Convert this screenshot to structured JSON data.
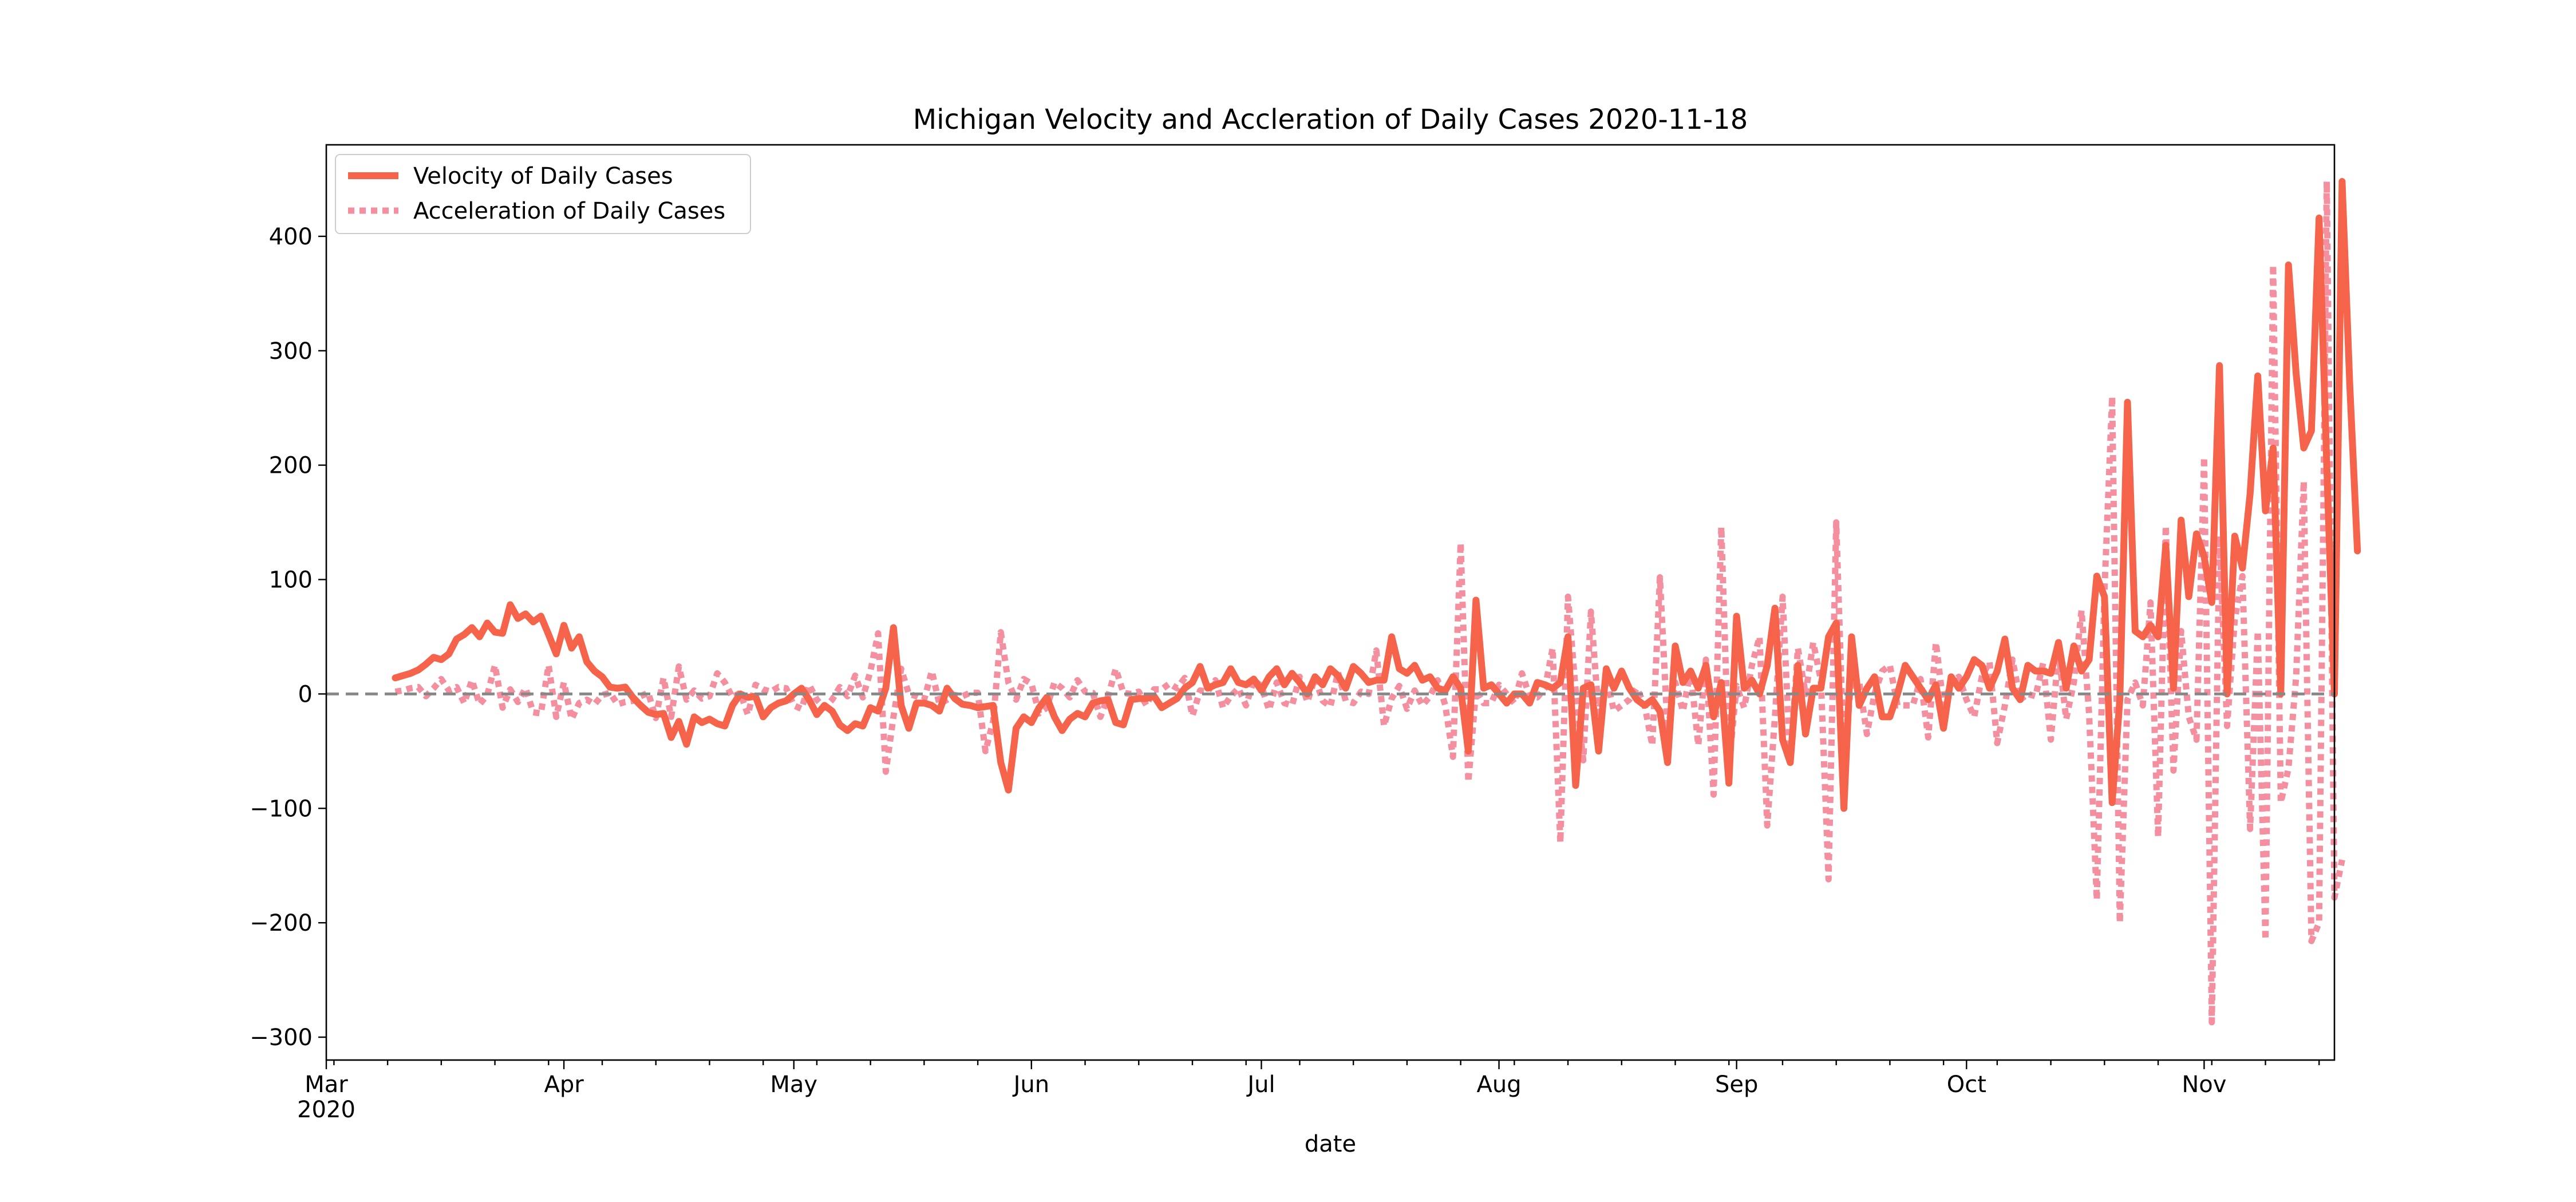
{
  "chart_data": {
    "type": "line",
    "title": "Michigan Velocity and Accleration of Daily Cases 2020-11-18",
    "xlabel": "date",
    "ylabel": "",
    "x_start": "2020-03-10",
    "x_end": "2020-11-18",
    "xlim": [
      "2020-03-01",
      "2020-11-18"
    ],
    "ylim": [
      -320,
      480
    ],
    "y_ticks": [
      -300,
      -200,
      -100,
      0,
      100,
      200,
      300,
      400
    ],
    "y_tick_labels": [
      "−300",
      "−200",
      "−100",
      "0",
      "100",
      "200",
      "300",
      "400"
    ],
    "x_ticks": [
      {
        "date": "2020-03-01",
        "label": "Mar",
        "sublabel": "2020"
      },
      {
        "date": "2020-04-01",
        "label": "Apr",
        "sublabel": ""
      },
      {
        "date": "2020-05-01",
        "label": "May",
        "sublabel": ""
      },
      {
        "date": "2020-06-01",
        "label": "Jun",
        "sublabel": ""
      },
      {
        "date": "2020-07-01",
        "label": "Jul",
        "sublabel": ""
      },
      {
        "date": "2020-08-01",
        "label": "Aug",
        "sublabel": ""
      },
      {
        "date": "2020-09-01",
        "label": "Sep",
        "sublabel": ""
      },
      {
        "date": "2020-10-01",
        "label": "Oct",
        "sublabel": ""
      },
      {
        "date": "2020-11-01",
        "label": "Nov",
        "sublabel": ""
      }
    ],
    "reference_line": {
      "y": 0,
      "color": "#888888",
      "style": "dashed"
    },
    "grid": false,
    "legend_position": "upper-left",
    "series": [
      {
        "name": "Velocity of Daily Cases",
        "color": "#f4634a",
        "style": "solid",
        "values": [
          14,
          16,
          18,
          21,
          26,
          32,
          30,
          35,
          48,
          52,
          58,
          50,
          62,
          54,
          53,
          78,
          66,
          70,
          63,
          68,
          52,
          35,
          60,
          40,
          50,
          28,
          20,
          15,
          6,
          5,
          6,
          -3,
          -10,
          -16,
          -18,
          -17,
          -38,
          -24,
          -44,
          -20,
          -25,
          -22,
          -26,
          -28,
          -10,
          0,
          -3,
          -2,
          -20,
          -12,
          -8,
          -6,
          0,
          5,
          -5,
          -18,
          -10,
          -15,
          -27,
          -32,
          -26,
          -28,
          -12,
          -15,
          5,
          58,
          -10,
          -30,
          -8,
          -8,
          -10,
          -15,
          5,
          -4,
          -9,
          -10,
          -12,
          -11,
          -10,
          -60,
          -84,
          -30,
          -20,
          -25,
          -12,
          -3,
          -20,
          -32,
          -22,
          -17,
          -20,
          -8,
          -6,
          -5,
          -25,
          -27,
          -5,
          -4,
          -4,
          -2,
          -12,
          -8,
          -4,
          5,
          10,
          24,
          5,
          8,
          10,
          22,
          10,
          8,
          13,
          3,
          15,
          22,
          8,
          18,
          10,
          0,
          15,
          8,
          22,
          16,
          5,
          24,
          18,
          10,
          12,
          12,
          50,
          22,
          18,
          25,
          12,
          15,
          5,
          3,
          15,
          5,
          -50,
          82,
          5,
          8,
          0,
          -8,
          0,
          0,
          -8,
          10,
          8,
          5,
          10,
          50,
          -80,
          5,
          8,
          -50,
          22,
          5,
          20,
          5,
          -5,
          -10,
          -5,
          -15,
          -60,
          42,
          10,
          20,
          5,
          25,
          -20,
          10,
          -78,
          68,
          5,
          12,
          0,
          25,
          75,
          -40,
          -60,
          25,
          -35,
          5,
          5,
          50,
          62,
          -100,
          50,
          -10,
          5,
          15,
          -20,
          -20,
          0,
          25,
          15,
          5,
          -5,
          8,
          -30,
          15,
          5,
          15,
          30,
          25,
          5,
          20,
          48,
          5,
          -5,
          25,
          20,
          20,
          18,
          45,
          5,
          42,
          20,
          30,
          103,
          85,
          -95,
          -5,
          255,
          55,
          50,
          60,
          50,
          130,
          5,
          152,
          85,
          140,
          120,
          80,
          287,
          0,
          138,
          110,
          175,
          278,
          160,
          215,
          0,
          375,
          280,
          215,
          230,
          416,
          200,
          0,
          448,
          270,
          125
        ]
      },
      {
        "name": "Acceleration of Daily Cases",
        "color": "#f48fa0",
        "style": "dotted",
        "values": [
          2,
          3,
          5,
          6,
          -2,
          5,
          13,
          3,
          6,
          -8,
          12,
          -9,
          -1,
          25,
          -12,
          4,
          -7,
          5,
          -16,
          -17,
          25,
          -20,
          10,
          -22,
          -8,
          -5,
          -9,
          -1,
          1,
          -9,
          -7,
          -6,
          -2,
          1,
          -21,
          14,
          -20,
          24,
          -5,
          3,
          -4,
          -2,
          18,
          10,
          -3,
          1,
          -18,
          8,
          4,
          2,
          6,
          5,
          -10,
          -13,
          8,
          -5,
          -12,
          -5,
          6,
          -2,
          16,
          -3,
          20,
          53,
          -68,
          -20,
          22,
          0,
          -2,
          -5,
          20,
          -9,
          -5,
          -1,
          -2,
          1,
          1,
          -50,
          -24,
          54,
          10,
          -5,
          13,
          9,
          -17,
          -12,
          10,
          5,
          -3,
          12,
          2,
          1,
          -20,
          -2,
          22,
          1,
          0,
          2,
          -10,
          4,
          4,
          9,
          5,
          14,
          -19,
          3,
          2,
          12,
          -12,
          -2,
          5,
          -10,
          12,
          7,
          -14,
          10,
          -8,
          -10,
          15,
          -7,
          14,
          -6,
          -11,
          19,
          -6,
          -8,
          2,
          0,
          38,
          -28,
          -4,
          7,
          -13,
          3,
          -10,
          -2,
          12,
          -10,
          -55,
          132,
          -77,
          3,
          -8,
          -8,
          8,
          0,
          -8,
          18,
          -2,
          -3,
          5,
          40,
          -130,
          85,
          3,
          -58,
          72,
          -17,
          15,
          -15,
          -10,
          -5,
          5,
          -10,
          -45,
          102,
          -32,
          10,
          -15,
          20,
          -45,
          30,
          -88,
          146,
          -63,
          7,
          -12,
          25,
          50,
          -115,
          -20,
          85,
          -60,
          40,
          0,
          45,
          12,
          -162,
          150,
          -60,
          15,
          10,
          -35,
          0,
          20,
          25,
          -10,
          -10,
          -10,
          13,
          -38,
          45,
          -10,
          10,
          15,
          -5,
          -20,
          15,
          28,
          -43,
          -10,
          30,
          -5,
          0,
          -2,
          27,
          -40,
          37,
          -22,
          10,
          73,
          -18,
          -180,
          90,
          260,
          -200,
          -5,
          10,
          -10,
          80,
          -125,
          147,
          -67,
          55,
          -20,
          -40,
          207,
          -287,
          138,
          -28,
          65,
          103,
          -118,
          55,
          -215,
          375,
          -95,
          -65,
          15,
          186,
          -216,
          -200,
          448,
          -178,
          -145
        ]
      }
    ]
  }
}
